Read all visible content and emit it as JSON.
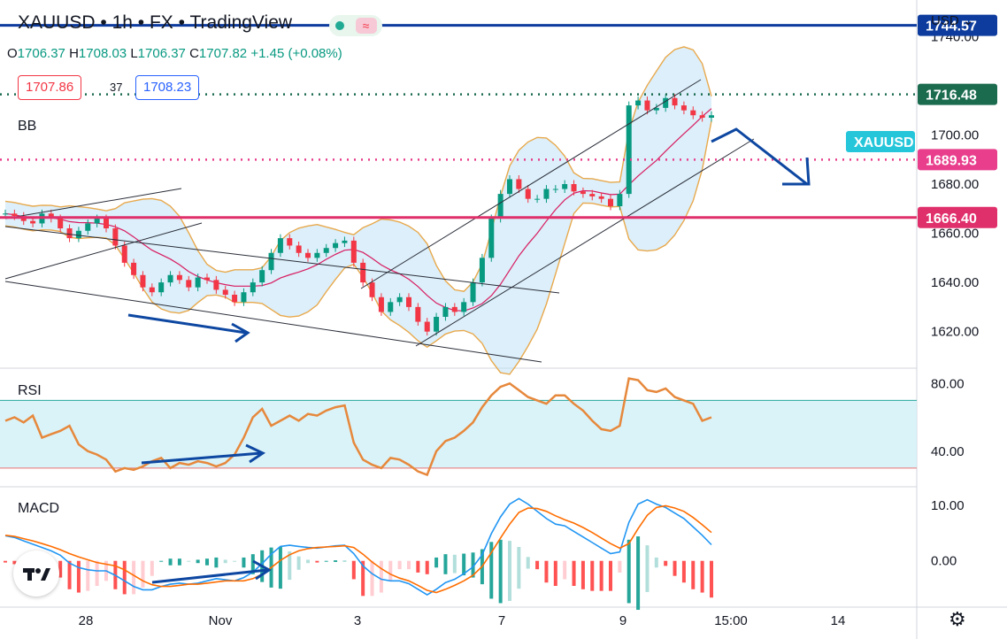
{
  "header": {
    "symbol": "XAUUSD",
    "separator": "•",
    "interval": "1h",
    "exchange": "FX",
    "source": "TradingView"
  },
  "ohlc": {
    "o_label": "O",
    "o": "1706.37",
    "h_label": "H",
    "h": "1708.03",
    "l_label": "L",
    "l": "1706.37",
    "c_label": "C",
    "c": "1707.82",
    "change": "+1.45 (+0.08%)"
  },
  "trade": {
    "sell": "1707.86",
    "spread": "37",
    "buy": "1708.23"
  },
  "panes": {
    "bb_label": "BB",
    "rsi_label": "RSI",
    "macd_label": "MACD"
  },
  "axis": {
    "currency": "USD"
  },
  "badges": [
    {
      "text": "1744.57",
      "color": "#0d3c9e"
    },
    {
      "text": "1716.48",
      "color": "#1b6b4f"
    },
    {
      "text": "XAUUSD",
      "color": "#26c6da"
    },
    {
      "text": "1689.93",
      "color": "#e83e8c"
    },
    {
      "text": "1666.40",
      "color": "#e0306b"
    }
  ],
  "colors": {
    "up": "#089981",
    "down": "#f23645",
    "bb_band": "#e8a94d",
    "bb_fill": "#bfe1f6",
    "bb_basis": "#d81b60",
    "rsi": "#e6883c",
    "rsi_band": "#cdeff5",
    "macd": "#2196f3",
    "signal": "#ff6d00",
    "arrow": "#0d47a1"
  },
  "chart_data": [
    {
      "type": "line",
      "name": "price",
      "symbol": "XAUUSD",
      "yaxis_ticks": [
        "1740.00",
        "1700.00",
        "1680.00",
        "1660.00",
        "1640.00",
        "1620.00"
      ],
      "xaxis_ticks": [
        "28",
        "Nov",
        "3",
        "7",
        "9",
        "15:00",
        "14"
      ],
      "ylim": [
        1608,
        1752
      ],
      "horizontal_levels": [
        1744.57,
        1716.48,
        1689.93,
        1666.4
      ],
      "series": [
        {
          "values": [
            1668,
            1667,
            1665,
            1664,
            1668,
            1666,
            1662,
            1658,
            1661,
            1664,
            1666,
            1662,
            1655,
            1648,
            1643,
            1638,
            1636,
            1640,
            1643,
            1641,
            1638,
            1642,
            1641,
            1637,
            1635,
            1632,
            1636,
            1640,
            1645,
            1652,
            1658,
            1655,
            1652,
            1650,
            1652,
            1654,
            1656,
            1657,
            1648,
            1640,
            1634,
            1628,
            1632,
            1634,
            1630,
            1624,
            1620,
            1626,
            1630,
            1628,
            1632,
            1640,
            1650,
            1666,
            1676,
            1682,
            1678,
            1674,
            1674,
            1678,
            1678,
            1680,
            1677,
            1676,
            1675,
            1674,
            1671,
            1676,
            1712,
            1714,
            1710,
            1711,
            1715,
            1712,
            1710,
            1708,
            1707,
            1708
          ]
        }
      ]
    },
    {
      "type": "line",
      "name": "RSI",
      "yaxis_ticks": [
        "80.00",
        "40.00"
      ],
      "ylim": [
        20,
        88
      ],
      "band": [
        70,
        30
      ],
      "series": [
        {
          "values": [
            58,
            60,
            57,
            61,
            48,
            50,
            52,
            55,
            44,
            40,
            38,
            35,
            28,
            30,
            29,
            31,
            34,
            36,
            30,
            33,
            32,
            34,
            33,
            31,
            33,
            38,
            48,
            60,
            65,
            55,
            58,
            61,
            58,
            62,
            61,
            64,
            66,
            67,
            45,
            35,
            32,
            30,
            36,
            35,
            32,
            28,
            26,
            40,
            46,
            48,
            52,
            57,
            66,
            73,
            78,
            80,
            76,
            72,
            70,
            68,
            73,
            73,
            68,
            64,
            58,
            53,
            52,
            55,
            83,
            82,
            76,
            75,
            77,
            72,
            70,
            68,
            58,
            60
          ]
        }
      ]
    },
    {
      "type": "bar",
      "name": "MACD",
      "yaxis_ticks": [
        "10.00",
        "0.00"
      ],
      "ylim": [
        -8,
        13
      ],
      "series": [
        {
          "name": "macd",
          "values": [
            4.5,
            4.2,
            3.6,
            3.0,
            2.4,
            1.8,
            1.0,
            -0.4,
            -1.2,
            -1.6,
            -1.8,
            -1.8,
            -2.6,
            -3.6,
            -4.6,
            -5.2,
            -5.2,
            -4.6,
            -4.2,
            -4.0,
            -4.2,
            -4.0,
            -3.6,
            -3.2,
            -3.4,
            -3.6,
            -3.0,
            -2.0,
            -0.5,
            1.2,
            2.6,
            2.8,
            2.6,
            2.4,
            2.3,
            2.5,
            2.7,
            2.8,
            1.3,
            -0.9,
            -2.3,
            -3.3,
            -3.6,
            -3.6,
            -4.1,
            -5.1,
            -6.1,
            -5.1,
            -3.9,
            -3.3,
            -2.3,
            -1.1,
            1.1,
            4.9,
            7.9,
            10.2,
            11.2,
            10.2,
            8.9,
            7.6,
            6.6,
            6.3,
            5.3,
            4.3,
            3.3,
            2.3,
            1.3,
            1.6,
            6.9,
            10.2,
            11.0,
            10.2,
            9.6,
            8.6,
            7.6,
            6.1,
            4.6,
            2.9
          ]
        },
        {
          "name": "signal",
          "values": [
            4.6,
            4.4,
            4.0,
            3.6,
            3.1,
            2.6,
            2.0,
            1.3,
            0.7,
            0.2,
            -0.3,
            -0.6,
            -0.9,
            -1.6,
            -2.6,
            -3.6,
            -4.3,
            -4.6,
            -4.6,
            -4.4,
            -4.2,
            -4.2,
            -4.0,
            -3.8,
            -3.6,
            -3.6,
            -3.6,
            -3.2,
            -2.4,
            -1.2,
            0.1,
            1.1,
            1.8,
            2.2,
            2.4,
            2.5,
            2.6,
            2.7,
            2.4,
            1.2,
            -0.2,
            -1.4,
            -2.4,
            -3.1,
            -3.6,
            -4.4,
            -5.3,
            -5.7,
            -5.1,
            -4.4,
            -3.6,
            -2.6,
            -1.0,
            1.5,
            4.1,
            6.6,
            8.7,
            9.5,
            9.4,
            8.9,
            8.1,
            7.4,
            6.8,
            6.0,
            5.1,
            4.1,
            3.1,
            2.3,
            3.1,
            5.8,
            8.2,
            9.6,
            9.9,
            9.5,
            8.9,
            7.8,
            6.5,
            5.1
          ]
        }
      ]
    }
  ]
}
